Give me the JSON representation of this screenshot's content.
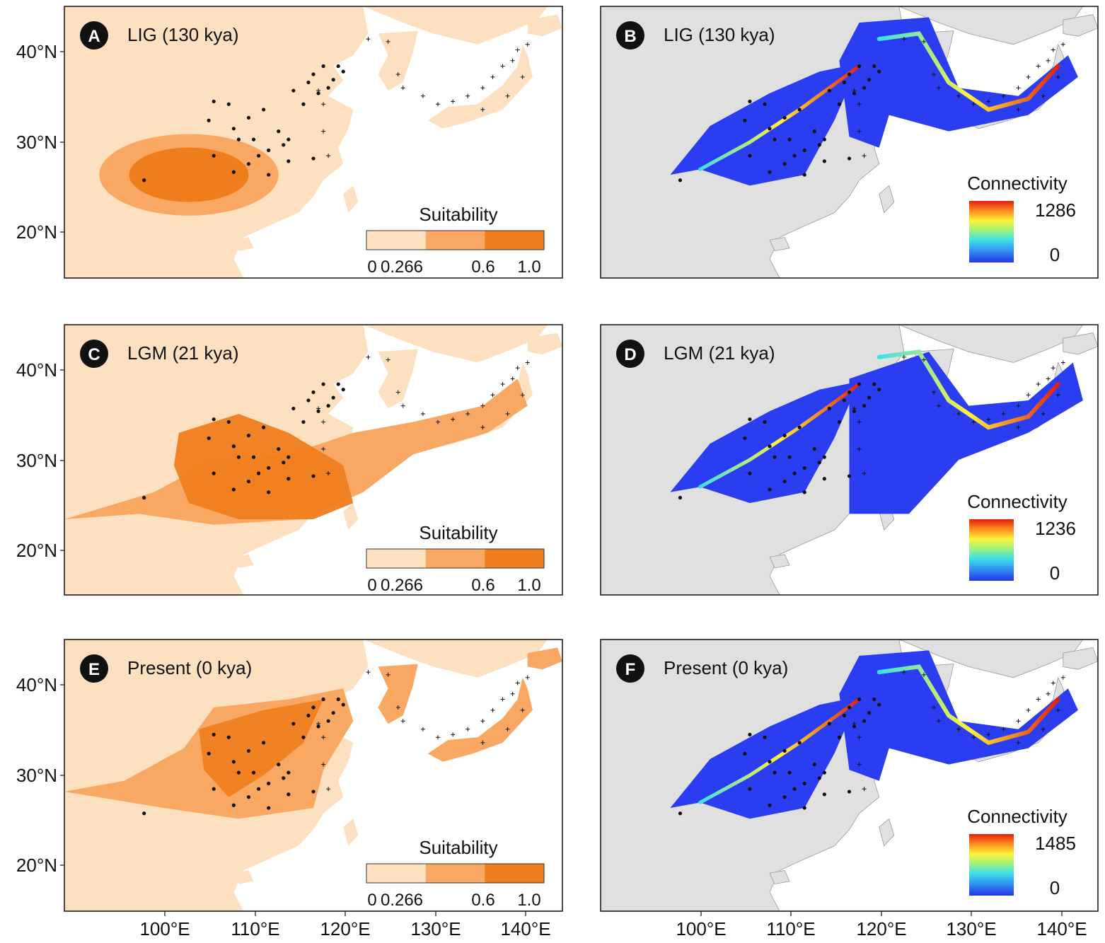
{
  "axes": {
    "latitude_ticks": [
      "40°N",
      "30°N",
      "20°N"
    ],
    "longitude_ticks": [
      "100°E",
      "110°E",
      "120°E",
      "130°E",
      "140°E"
    ]
  },
  "colors": {
    "suitability": [
      "#fde0bf",
      "#f9a864",
      "#ef7d1c"
    ],
    "background_land": "#e0e0e0",
    "connectivity_gradient": [
      "#2436e6",
      "#2f8df0",
      "#3de0e8",
      "#9ff27a",
      "#fff23a",
      "#ff8a1e",
      "#e02010"
    ]
  },
  "panels": [
    {
      "letter": "A",
      "title": "LIG (130 kya)",
      "type": "suitability",
      "legend": {
        "title": "Suitability",
        "ticks": [
          "0",
          "0.266",
          "0.6",
          "1.0"
        ]
      }
    },
    {
      "letter": "B",
      "title": "LIG (130 kya)",
      "type": "connectivity",
      "legend": {
        "title": "Connectivity",
        "max": "1286",
        "min": "0"
      }
    },
    {
      "letter": "C",
      "title": "LGM (21 kya)",
      "type": "suitability",
      "legend": {
        "title": "Suitability",
        "ticks": [
          "0",
          "0.266",
          "0.6",
          "1.0"
        ]
      }
    },
    {
      "letter": "D",
      "title": "LGM (21 kya)",
      "type": "connectivity",
      "legend": {
        "title": "Connectivity",
        "max": "1236",
        "min": "0"
      }
    },
    {
      "letter": "E",
      "title": "Present (0 kya)",
      "type": "suitability",
      "legend": {
        "title": "Suitability",
        "ticks": [
          "0",
          "0.266",
          "0.6",
          "1.0"
        ]
      }
    },
    {
      "letter": "F",
      "title": "Present (0 kya)",
      "type": "connectivity",
      "legend": {
        "title": "Connectivity",
        "max": "1485",
        "min": "0"
      }
    }
  ]
}
